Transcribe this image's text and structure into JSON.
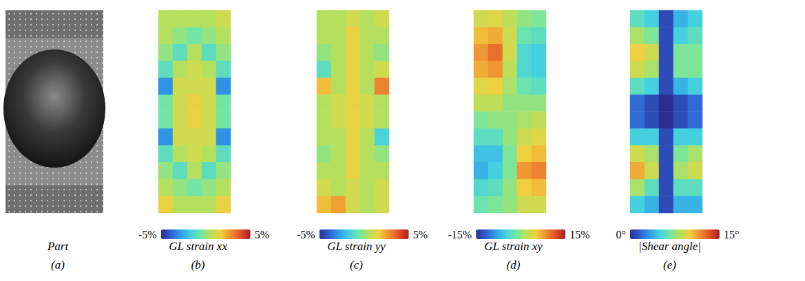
{
  "part": {
    "title": "Part",
    "label": "(a)"
  },
  "chart_data": [
    {
      "type": "heatmap",
      "title": "GL strain xx",
      "label": "(b)",
      "tick_labels": false,
      "colorbar_range": [
        -5,
        5
      ],
      "colorbar_ticks": [
        {
          "value": -5,
          "label": "-5%"
        },
        {
          "value": 5,
          "label": "5%"
        }
      ],
      "cells": [
        [
          0.5,
          0.5,
          0.5,
          0.5,
          1
        ],
        [
          0.5,
          0,
          -0.5,
          0,
          0.5
        ],
        [
          0,
          -1,
          0.5,
          -1,
          0
        ],
        [
          -1,
          0.5,
          1,
          0.5,
          -1
        ],
        [
          -3,
          1,
          1,
          1,
          -3
        ],
        [
          -0.5,
          1,
          1.5,
          1,
          -0.5
        ],
        [
          -0.5,
          1,
          1.5,
          1,
          -0.5
        ],
        [
          -3,
          1,
          1,
          1,
          -3
        ],
        [
          -1,
          0.5,
          1,
          0.5,
          -1
        ],
        [
          0,
          -1,
          0.5,
          -1,
          0
        ],
        [
          0.5,
          0,
          -0.5,
          0,
          0.5
        ],
        [
          1.5,
          0.5,
          0.5,
          0.5,
          1.5
        ]
      ]
    },
    {
      "type": "heatmap",
      "title": "GL strain yy",
      "label": "(c)",
      "tick_labels": false,
      "colorbar_range": [
        -5,
        5
      ],
      "colorbar_ticks": [
        {
          "value": -5,
          "label": "-5%"
        },
        {
          "value": 5,
          "label": "5%"
        }
      ],
      "cells": [
        [
          0.5,
          0.5,
          1,
          0.5,
          1
        ],
        [
          0.5,
          0.5,
          1.5,
          0.5,
          0.5
        ],
        [
          0,
          0.5,
          1.5,
          0.5,
          0
        ],
        [
          -1,
          0.5,
          1.5,
          0.5,
          1
        ],
        [
          2,
          0.5,
          1.5,
          0.5,
          3
        ],
        [
          0.5,
          1,
          1.5,
          1,
          0.5
        ],
        [
          0.5,
          1,
          1.5,
          1,
          0.5
        ],
        [
          0.5,
          0.5,
          1.5,
          0.5,
          -1.5
        ],
        [
          0,
          0.5,
          1.5,
          0.5,
          0
        ],
        [
          0.5,
          0.5,
          1.5,
          0.5,
          0.5
        ],
        [
          1,
          0.5,
          1,
          0.5,
          1
        ],
        [
          2,
          2.5,
          1,
          0.5,
          1
        ]
      ]
    },
    {
      "type": "heatmap",
      "title": "GL strain xy",
      "label": "(d)",
      "tick_labels": false,
      "colorbar_range": [
        -15,
        15
      ],
      "colorbar_ticks": [
        {
          "value": -15,
          "label": "-15%"
        },
        {
          "value": 15,
          "label": "15%"
        }
      ],
      "cells": [
        [
          3,
          4,
          2,
          0,
          -1
        ],
        [
          6,
          7,
          3,
          -2,
          -3
        ],
        [
          8,
          10,
          3,
          -4,
          -5
        ],
        [
          7,
          8,
          2,
          -4,
          -5
        ],
        [
          4,
          5,
          1,
          -2,
          -3
        ],
        [
          2,
          2,
          0,
          0,
          0
        ],
        [
          -1,
          0,
          0,
          1,
          2
        ],
        [
          -3,
          -3,
          0,
          3,
          4
        ],
        [
          -6,
          -6,
          -1,
          5,
          6
        ],
        [
          -7,
          -5,
          -1,
          8,
          9
        ],
        [
          -4,
          -3,
          0,
          5,
          6
        ],
        [
          -2,
          -1,
          0,
          3,
          3
        ]
      ]
    },
    {
      "type": "heatmap",
      "title": "|Shear angle|",
      "label": "(e)",
      "tick_labels": false,
      "colorbar_range": [
        0,
        15
      ],
      "colorbar_ticks": [
        {
          "value": 0,
          "label": "0°"
        },
        {
          "value": 15,
          "label": "15°"
        }
      ],
      "cells": [
        [
          6,
          5,
          1,
          4,
          5
        ],
        [
          8,
          7,
          1,
          5,
          6
        ],
        [
          10,
          9,
          1,
          7,
          7
        ],
        [
          9,
          8,
          1,
          7,
          7
        ],
        [
          6,
          5,
          1,
          4,
          5
        ],
        [
          2,
          1,
          0,
          1,
          2
        ],
        [
          2,
          1,
          0,
          1,
          2
        ],
        [
          5,
          5,
          1,
          5,
          5
        ],
        [
          9,
          8,
          1,
          7,
          8
        ],
        [
          11,
          9,
          1,
          8,
          9
        ],
        [
          8,
          6,
          1,
          6,
          6
        ],
        [
          5,
          4,
          1,
          4,
          4
        ]
      ]
    }
  ]
}
